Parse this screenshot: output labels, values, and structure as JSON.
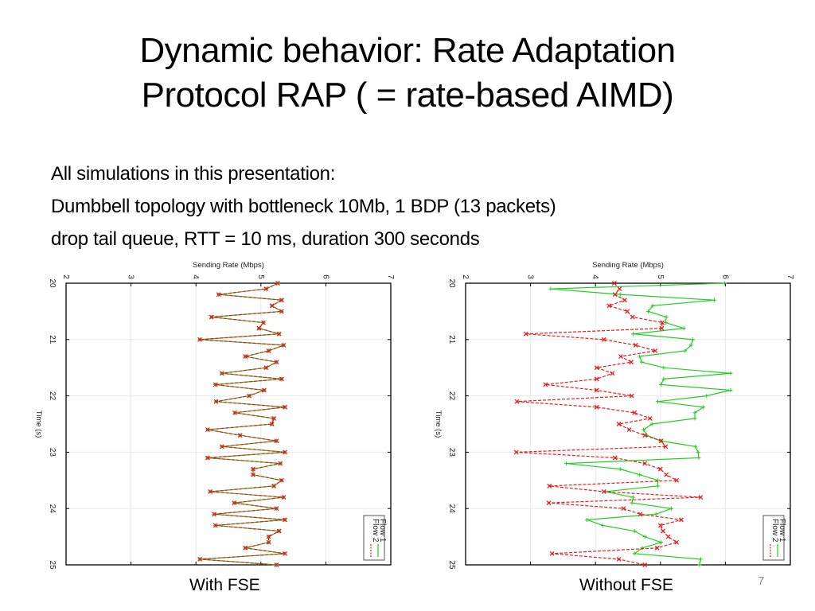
{
  "slide": {
    "title_lines": [
      "Dynamic behavior: Rate Adaptation",
      "Protocol RAP ( = rate-based AIMD)"
    ],
    "body_lines": [
      "All simulations in this presentation:",
      "Dumbbell topology with bottleneck 10Mb, 1 BDP (13 packets)",
      "drop tail queue, RTT = 10 ms, duration 300 seconds"
    ],
    "captions": [
      "With FSE",
      "Without FSE"
    ],
    "slide_number": "7"
  },
  "colors": {
    "flow1": "#22cc22",
    "flow2": "#e02020",
    "grid": "#e8e8e8",
    "frame": "#000000"
  },
  "chart_data": [
    {
      "type": "line",
      "title": "With FSE",
      "orientation": "rotated (rate on top axis, time on left axis increasing downward)",
      "xlabel": "Sending Rate (Mbps)",
      "ylabel": "Time (s)",
      "rate_ticks": [
        "2",
        "3",
        "4",
        "5",
        "6",
        "7"
      ],
      "time_ticks": [
        "20",
        "21",
        "22",
        "23",
        "24",
        "25"
      ],
      "rate_range": [
        2,
        7
      ],
      "time_range": [
        20,
        25
      ],
      "grid": true,
      "legend": {
        "placement": "bottom-right",
        "entries": [
          "Flow 1",
          "Flow 2"
        ]
      },
      "time": [
        20.0,
        20.1,
        20.2,
        20.3,
        20.4,
        20.5,
        20.6,
        20.7,
        20.8,
        20.9,
        21.0,
        21.1,
        21.2,
        21.3,
        21.4,
        21.5,
        21.6,
        21.7,
        21.8,
        21.9,
        22.0,
        22.1,
        22.2,
        22.3,
        22.4,
        22.5,
        22.6,
        22.7,
        22.8,
        22.9,
        23.0,
        23.1,
        23.2,
        23.3,
        23.4,
        23.5,
        23.6,
        23.7,
        23.8,
        23.9,
        24.0,
        24.1,
        24.2,
        24.3,
        24.4,
        24.5,
        24.6,
        24.7,
        24.8,
        24.9,
        25.0
      ],
      "series": [
        {
          "name": "Flow 1",
          "values": [
            5.26,
            5.08,
            4.35,
            5.32,
            5.17,
            5.32,
            4.24,
            5.04,
            4.97,
            5.28,
            4.06,
            5.35,
            5.12,
            4.76,
            5.24,
            5.08,
            4.4,
            5.32,
            4.3,
            5.05,
            4.82,
            4.31,
            5.37,
            4.6,
            5.2,
            5.17,
            4.18,
            4.68,
            5.24,
            4.4,
            5.37,
            4.18,
            5.3,
            4.88,
            4.88,
            5.32,
            5.2,
            4.22,
            5.35,
            4.59,
            5.24,
            4.28,
            5.37,
            4.3,
            5.28,
            5.12,
            5.12,
            4.76,
            5.37,
            4.06,
            5.24
          ]
        },
        {
          "name": "Flow 2",
          "values": [
            5.26,
            5.08,
            4.35,
            5.32,
            5.17,
            5.32,
            4.24,
            5.04,
            4.97,
            5.28,
            4.06,
            5.35,
            5.12,
            4.76,
            5.24,
            5.08,
            4.4,
            5.32,
            4.3,
            5.05,
            4.82,
            4.31,
            5.37,
            4.6,
            5.2,
            5.17,
            4.18,
            4.68,
            5.24,
            4.4,
            5.37,
            4.18,
            5.3,
            4.88,
            4.88,
            5.32,
            5.2,
            4.22,
            5.35,
            4.59,
            5.24,
            4.28,
            5.37,
            4.3,
            5.28,
            5.12,
            5.12,
            4.76,
            5.37,
            4.06,
            5.24
          ]
        }
      ]
    },
    {
      "type": "line",
      "title": "Without FSE",
      "orientation": "rotated (rate on top axis, time on left axis increasing downward)",
      "xlabel": "Sending Rate (Mbps)",
      "ylabel": "Time (s)",
      "rate_ticks": [
        "2",
        "3",
        "4",
        "5",
        "6",
        "7"
      ],
      "time_ticks": [
        "20",
        "21",
        "22",
        "23",
        "24",
        "25"
      ],
      "rate_range": [
        2,
        7
      ],
      "time_range": [
        20,
        25
      ],
      "grid": true,
      "legend": {
        "placement": "bottom-right",
        "entries": [
          "Flow 1",
          "Flow 2"
        ]
      },
      "time": [
        20.0,
        20.1,
        20.2,
        20.3,
        20.4,
        20.5,
        20.6,
        20.7,
        20.8,
        20.9,
        21.0,
        21.1,
        21.2,
        21.3,
        21.4,
        21.5,
        21.6,
        21.7,
        21.8,
        21.9,
        22.0,
        22.1,
        22.2,
        22.3,
        22.4,
        22.5,
        22.6,
        22.7,
        22.8,
        22.9,
        23.0,
        23.1,
        23.2,
        23.3,
        23.4,
        23.5,
        23.6,
        23.7,
        23.8,
        23.9,
        24.0,
        24.1,
        24.2,
        24.3,
        24.4,
        24.5,
        24.6,
        24.7,
        24.8,
        24.9,
        25.0
      ],
      "series": [
        {
          "name": "Flow 1",
          "values": [
            5.99,
            3.31,
            4.38,
            5.83,
            4.88,
            4.81,
            5.09,
            5.08,
            5.36,
            4.58,
            5.5,
            5.47,
            5.38,
            4.68,
            4.71,
            5.05,
            6.08,
            5.05,
            5.01,
            6.08,
            5.71,
            4.96,
            5.66,
            5.53,
            5.53,
            4.87,
            4.74,
            4.79,
            5.01,
            5.54,
            5.58,
            5.59,
            3.55,
            4.38,
            4.68,
            4.96,
            4.96,
            4.15,
            4.58,
            4.56,
            5.17,
            4.93,
            3.87,
            4.11,
            4.6,
            4.76,
            5.01,
            4.72,
            4.6,
            5.62,
            5.6
          ]
        },
        {
          "name": "Flow 2",
          "values": [
            4.29,
            4.37,
            4.3,
            4.45,
            4.21,
            4.49,
            4.57,
            5.03,
            5.02,
            2.93,
            4.13,
            4.62,
            4.92,
            4.39,
            4.55,
            4.02,
            4.26,
            4.02,
            3.23,
            4.02,
            4.56,
            2.79,
            4.02,
            4.6,
            4.84,
            4.36,
            4.52,
            4.76,
            5.01,
            5.08,
            2.78,
            4.3,
            4.76,
            5.0,
            5.09,
            5.25,
            3.29,
            4.13,
            5.62,
            3.28,
            4.43,
            4.69,
            5.32,
            5.0,
            5.04,
            5.12,
            5.25,
            4.95,
            3.33,
            4.36,
            4.76
          ]
        }
      ]
    }
  ]
}
